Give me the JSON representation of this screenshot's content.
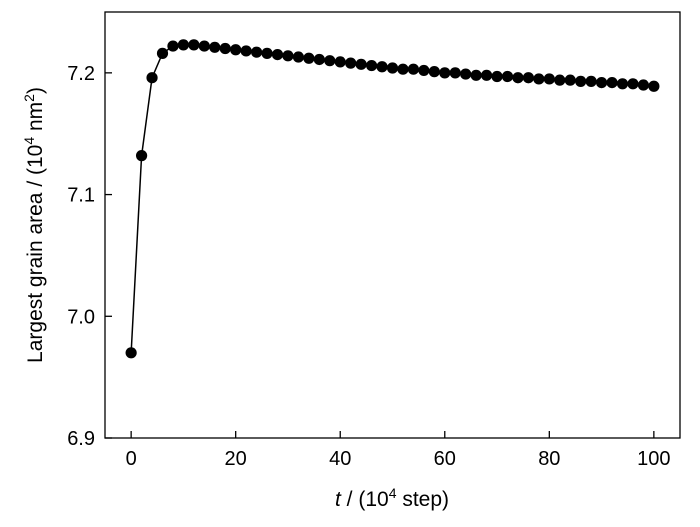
{
  "chart_data": {
    "type": "scatter",
    "title": "",
    "xlabel": {
      "var": "t",
      "rest": " / (10",
      "sup": "4",
      "tail": " step)"
    },
    "ylabel": {
      "main": "Largest grain area / (10",
      "sup1": "4",
      "mid": " nm",
      "sup2": "2",
      "tail": ")"
    },
    "xlim": [
      -5,
      105
    ],
    "ylim": [
      6.9,
      7.25
    ],
    "xticks": [
      0,
      20,
      40,
      60,
      80,
      100
    ],
    "xtick_labels": [
      "0",
      "20",
      "40",
      "60",
      "80",
      "100"
    ],
    "yticks": [
      6.9,
      7.0,
      7.1,
      7.2
    ],
    "ytick_labels": [
      "6.9",
      "7.0",
      "7.1",
      "7.2"
    ],
    "marker": "filled-circle",
    "line": "solid",
    "grid": false,
    "color": "#000000",
    "series": [
      {
        "x": [
          0,
          2,
          4,
          6,
          8,
          10,
          12,
          14,
          16,
          18,
          20,
          22,
          24,
          26,
          28,
          30,
          32,
          34,
          36,
          38,
          40,
          42,
          44,
          46,
          48,
          50,
          52,
          54,
          56,
          58,
          60,
          62,
          64,
          66,
          68,
          70,
          72,
          74,
          76,
          78,
          80,
          82,
          84,
          86,
          88,
          90,
          92,
          94,
          96,
          98,
          100
        ],
        "y": [
          6.97,
          7.132,
          7.196,
          7.216,
          7.222,
          7.223,
          7.223,
          7.222,
          7.221,
          7.22,
          7.219,
          7.218,
          7.217,
          7.216,
          7.215,
          7.214,
          7.213,
          7.212,
          7.211,
          7.21,
          7.209,
          7.208,
          7.207,
          7.206,
          7.205,
          7.204,
          7.203,
          7.203,
          7.202,
          7.201,
          7.2,
          7.2,
          7.199,
          7.198,
          7.198,
          7.197,
          7.197,
          7.196,
          7.196,
          7.195,
          7.195,
          7.194,
          7.194,
          7.193,
          7.193,
          7.192,
          7.192,
          7.191,
          7.191,
          7.19,
          7.189
        ]
      }
    ]
  }
}
